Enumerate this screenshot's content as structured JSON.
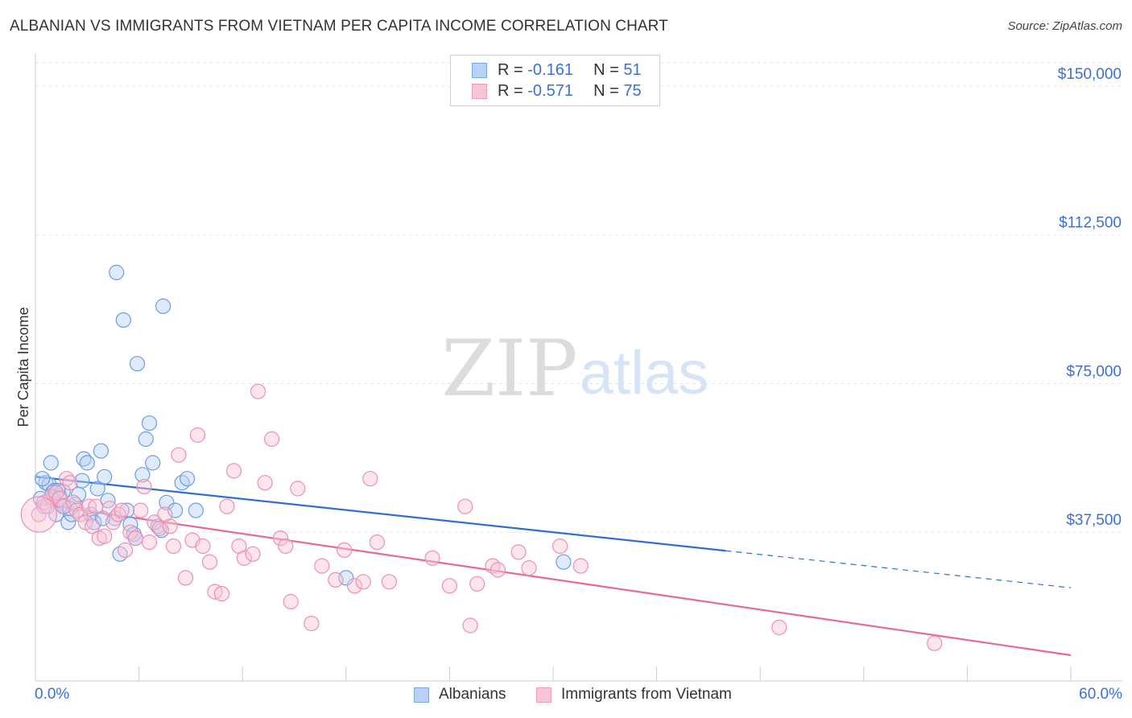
{
  "title": "ALBANIAN VS IMMIGRANTS FROM VIETNAM PER CAPITA INCOME CORRELATION CHART",
  "source": "Source: ZipAtlas.com",
  "watermark": {
    "zip": "ZIP",
    "atlas": "atlas"
  },
  "legend": {
    "rows": [
      {
        "r_label": "R = ",
        "r_value": "-0.161",
        "n_label": "N = ",
        "n_value": "51",
        "color": "#7aa7e6",
        "fill": "#b9d1f5"
      },
      {
        "r_label": "R = ",
        "r_value": "-0.571",
        "n_label": "N = ",
        "n_value": "75",
        "color": "#ef9ab8",
        "fill": "#f8c6d7"
      }
    ]
  },
  "bottom_legend": [
    {
      "label": "Albanians",
      "color": "#7aa7e6",
      "fill": "#b9d1f5"
    },
    {
      "label": "Immigrants from Vietnam",
      "color": "#ef9ab8",
      "fill": "#f8c6d7"
    }
  ],
  "chart_data": {
    "type": "scatter",
    "title": "ALBANIAN VS IMMIGRANTS FROM VIETNAM PER CAPITA INCOME CORRELATION CHART",
    "xlabel": "",
    "ylabel": "Per Capita Income",
    "xlim": [
      0,
      60
    ],
    "ylim": [
      0,
      157500
    ],
    "x_tick_labels": [
      "0.0%",
      "60.0%"
    ],
    "y_ticks": [
      37500,
      75000,
      112500,
      150000
    ],
    "y_tick_labels": [
      "$37,500",
      "$75,000",
      "$112,500",
      "$150,000"
    ],
    "grid": true,
    "legend_position": "top-center",
    "series": [
      {
        "name": "Albanians",
        "color": "#6b9de0",
        "fill": "#b9d1f5",
        "line_color": "#2f6fce",
        "trend": {
          "x_start": 0,
          "y_start": 51500,
          "x_end": 60,
          "y_end": 23500,
          "solid_until_x": 40
        },
        "points": [
          [
            0.3,
            46000
          ],
          [
            0.5,
            44000
          ],
          [
            0.6,
            50000
          ],
          [
            0.8,
            49500
          ],
          [
            0.9,
            55000
          ],
          [
            1.0,
            47500
          ],
          [
            1.1,
            48000
          ],
          [
            1.2,
            42000
          ],
          [
            1.4,
            46500
          ],
          [
            1.6,
            47800
          ],
          [
            1.7,
            44000
          ],
          [
            1.9,
            40000
          ],
          [
            2.1,
            42000
          ],
          [
            2.3,
            44500
          ],
          [
            2.5,
            47000
          ],
          [
            2.7,
            50500
          ],
          [
            2.8,
            56000
          ],
          [
            3.0,
            55000
          ],
          [
            3.2,
            42000
          ],
          [
            3.4,
            40000
          ],
          [
            3.6,
            48500
          ],
          [
            3.8,
            58000
          ],
          [
            4.0,
            51500
          ],
          [
            4.2,
            45500
          ],
          [
            4.6,
            41000
          ],
          [
            4.7,
            103000
          ],
          [
            4.9,
            32000
          ],
          [
            5.1,
            91000
          ],
          [
            5.3,
            43000
          ],
          [
            5.5,
            39500
          ],
          [
            5.7,
            37000
          ],
          [
            5.9,
            80000
          ],
          [
            6.2,
            52000
          ],
          [
            6.4,
            61000
          ],
          [
            6.6,
            65000
          ],
          [
            6.8,
            55000
          ],
          [
            7.1,
            39000
          ],
          [
            7.4,
            94500
          ],
          [
            7.6,
            45000
          ],
          [
            8.1,
            43000
          ],
          [
            8.5,
            50000
          ],
          [
            8.8,
            51000
          ],
          [
            9.3,
            43000
          ],
          [
            18.0,
            26000
          ],
          [
            30.6,
            30000
          ],
          [
            0.4,
            51000
          ],
          [
            1.3,
            48000
          ],
          [
            2.0,
            43500
          ],
          [
            3.9,
            41000
          ],
          [
            5.8,
            36000
          ],
          [
            7.3,
            38000
          ]
        ]
      },
      {
        "name": "Immigrants from Vietnam",
        "color": "#ec8fb0",
        "fill": "#f8c6d7",
        "line_color": "#e66a96",
        "trend": {
          "x_start": 0,
          "y_start": 44800,
          "x_end": 60,
          "y_end": 6500,
          "solid_until_x": 60
        },
        "points": [
          [
            0.2,
            42000
          ],
          [
            0.5,
            45000
          ],
          [
            0.7,
            44000
          ],
          [
            0.9,
            46500
          ],
          [
            1.2,
            47500
          ],
          [
            1.4,
            46000
          ],
          [
            1.6,
            44000
          ],
          [
            1.8,
            51000
          ],
          [
            2.0,
            50000
          ],
          [
            2.2,
            45000
          ],
          [
            2.4,
            43000
          ],
          [
            2.6,
            42000
          ],
          [
            2.9,
            40000
          ],
          [
            3.1,
            44000
          ],
          [
            3.3,
            39000
          ],
          [
            3.5,
            44000
          ],
          [
            3.7,
            36000
          ],
          [
            4.0,
            36500
          ],
          [
            4.3,
            43500
          ],
          [
            4.5,
            40000
          ],
          [
            4.8,
            42000
          ],
          [
            5.0,
            43000
          ],
          [
            5.2,
            33000
          ],
          [
            5.5,
            37500
          ],
          [
            5.8,
            36000
          ],
          [
            6.1,
            43000
          ],
          [
            6.3,
            49000
          ],
          [
            6.6,
            35000
          ],
          [
            6.9,
            40000
          ],
          [
            7.2,
            38500
          ],
          [
            7.5,
            42000
          ],
          [
            7.8,
            39000
          ],
          [
            8.0,
            34000
          ],
          [
            8.3,
            57000
          ],
          [
            8.7,
            26000
          ],
          [
            9.1,
            35500
          ],
          [
            9.4,
            62000
          ],
          [
            9.7,
            34000
          ],
          [
            10.1,
            30000
          ],
          [
            10.4,
            22500
          ],
          [
            10.8,
            22000
          ],
          [
            11.1,
            44000
          ],
          [
            11.5,
            53000
          ],
          [
            11.8,
            34000
          ],
          [
            12.1,
            31000
          ],
          [
            12.6,
            32000
          ],
          [
            12.9,
            73000
          ],
          [
            13.3,
            50000
          ],
          [
            13.7,
            61000
          ],
          [
            14.2,
            36000
          ],
          [
            14.5,
            34000
          ],
          [
            14.8,
            20000
          ],
          [
            15.2,
            48500
          ],
          [
            16.0,
            14500
          ],
          [
            16.6,
            29000
          ],
          [
            17.4,
            25500
          ],
          [
            17.9,
            33000
          ],
          [
            18.5,
            24000
          ],
          [
            19.0,
            25000
          ],
          [
            19.4,
            51000
          ],
          [
            19.8,
            35000
          ],
          [
            20.5,
            25000
          ],
          [
            23.0,
            31000
          ],
          [
            24.0,
            24000
          ],
          [
            24.9,
            44000
          ],
          [
            25.2,
            14000
          ],
          [
            25.6,
            24500
          ],
          [
            26.5,
            29000
          ],
          [
            26.8,
            28000
          ],
          [
            28.0,
            32500
          ],
          [
            28.6,
            28500
          ],
          [
            30.4,
            34000
          ],
          [
            31.6,
            29000
          ],
          [
            43.1,
            13500
          ],
          [
            52.1,
            9500
          ]
        ]
      }
    ]
  }
}
